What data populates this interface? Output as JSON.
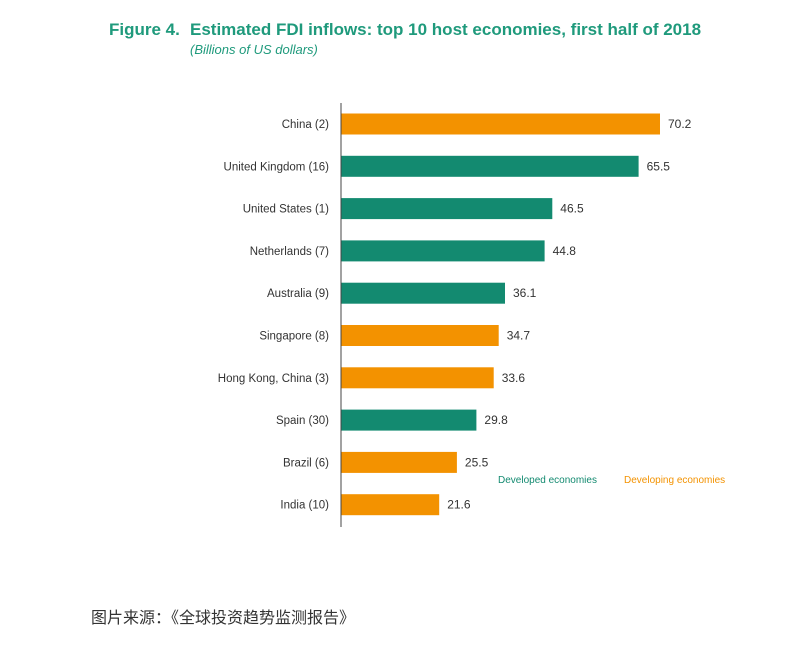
{
  "figure_label": "Figure 4.",
  "source_text": "图片来源：《全球投资趋势监测报告》",
  "colors": {
    "developed": "#138a70",
    "developing": "#f39200",
    "title": "#1f9a7c",
    "axis": "#444444",
    "text": "#333333"
  },
  "chart_data": {
    "type": "bar",
    "orientation": "horizontal",
    "title": "Estimated FDI inflows: top 10 host economies, first half of 2018",
    "subtitle": "(Billions of US dollars)",
    "categories": [
      "China (2)",
      "United Kingdom (16)",
      "United States (1)",
      "Netherlands (7)",
      "Australia (9)",
      "Singapore (8)",
      "Hong Kong, China (3)",
      "Spain (30)",
      "Brazil (6)",
      "India (10)"
    ],
    "values": [
      70.2,
      65.5,
      46.5,
      44.8,
      36.1,
      34.7,
      33.6,
      29.8,
      25.5,
      21.6
    ],
    "value_labels": [
      "70.2",
      "65.5",
      "46.5",
      "44.8",
      "36.1",
      "34.7",
      "33.6",
      "29.8",
      "25.5",
      "21.6"
    ],
    "groups": [
      "developing",
      "developed",
      "developed",
      "developed",
      "developed",
      "developing",
      "developing",
      "developed",
      "developing",
      "developing"
    ],
    "legend": [
      {
        "key": "developed",
        "label": "Developed economies"
      },
      {
        "key": "developing",
        "label": "Developing economies"
      }
    ],
    "legend_position": "right",
    "xlim": [
      0,
      75
    ]
  }
}
